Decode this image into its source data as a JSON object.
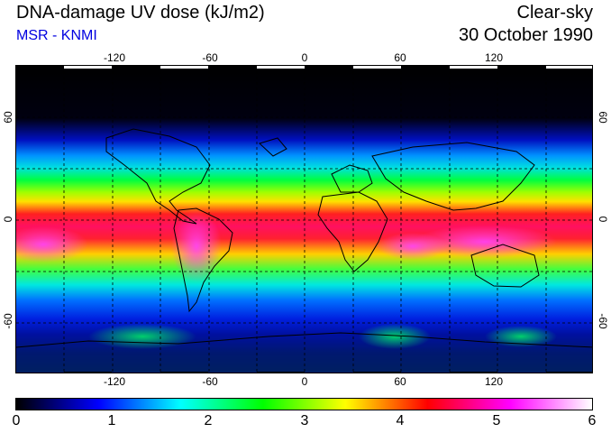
{
  "header": {
    "title": "DNA-damage UV dose (kJ/m2)",
    "source": "MSR - KNMI",
    "condition": "Clear-sky",
    "date": "30 October 1990"
  },
  "map": {
    "lon_labels": [
      "-120",
      "-60",
      "0",
      "60",
      "120"
    ],
    "lat_labels_left": [
      "60",
      "0",
      "-60"
    ],
    "lat_labels_right": [
      "60",
      "0",
      "-60"
    ],
    "lon_range": [
      -180,
      180
    ],
    "lat_range": [
      -90,
      90
    ],
    "grid_spacing_deg": 30
  },
  "colorbar": {
    "min": 0,
    "max": 6,
    "labels": [
      "0",
      "1",
      "2",
      "3",
      "4",
      "5",
      "6"
    ],
    "stops": [
      "#000000",
      "#0000ff",
      "#00ffff",
      "#00ff00",
      "#ffff00",
      "#ff0000",
      "#ff00ff",
      "#ffffff"
    ]
  },
  "colors": {
    "title": "#000000",
    "source": "#0000e0"
  }
}
